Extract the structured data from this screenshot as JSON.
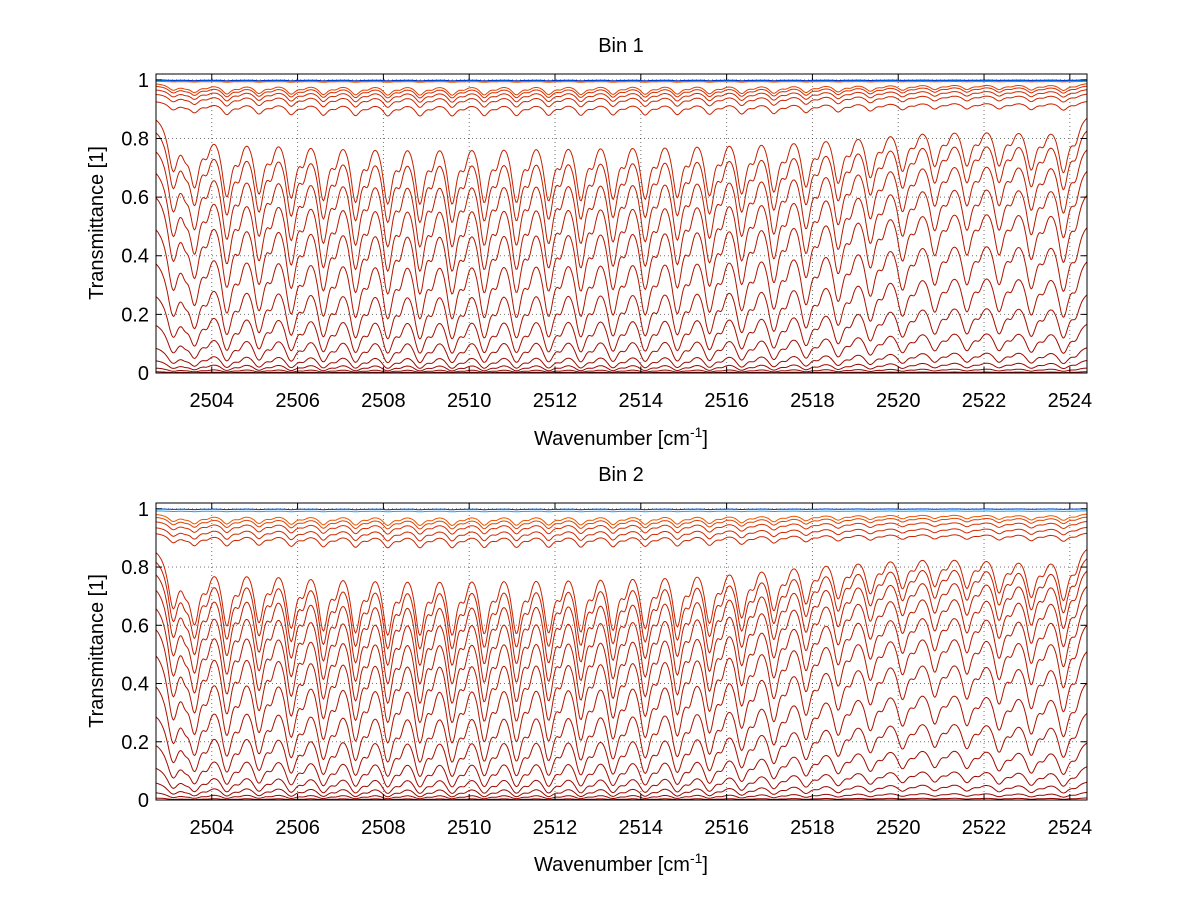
{
  "chart_data": [
    {
      "type": "line",
      "title": "Bin 1",
      "xlabel": "Wavenumber [cm",
      "xlabel_sup": "-1",
      "xlabel_end": "]",
      "ylabel": "Transmittance [1]",
      "xlim": [
        2502.7,
        2524.4
      ],
      "ylim": [
        0,
        1.02
      ],
      "xticks": [
        2504,
        2506,
        2508,
        2510,
        2512,
        2514,
        2516,
        2518,
        2520,
        2522,
        2524
      ],
      "yticks": [
        0,
        0.2,
        0.4,
        0.6,
        0.8,
        1
      ],
      "ytick_labels": [
        "0",
        "0.2",
        "0.4",
        "0.6",
        "0.8",
        "1"
      ],
      "grid": true,
      "line_centers": [
        2503.1,
        2503.6,
        2504.35,
        2505.1,
        2505.85,
        2506.6,
        2507.35,
        2508.1,
        2508.85,
        2509.6,
        2510.35,
        2511.1,
        2511.85,
        2512.6,
        2513.35,
        2514.1,
        2514.85,
        2515.6,
        2516.35,
        2517.1,
        2517.85,
        2518.6,
        2519.35,
        2520.1,
        2520.85,
        2521.6,
        2522.35,
        2523.1,
        2523.85
      ],
      "line_depths": [
        0.55,
        0.7,
        0.85,
        0.8,
        0.85,
        0.88,
        0.9,
        0.92,
        0.92,
        0.92,
        0.9,
        0.9,
        0.88,
        0.88,
        0.86,
        0.86,
        0.84,
        0.82,
        0.8,
        0.78,
        0.72,
        0.68,
        0.62,
        0.55,
        0.5,
        0.5,
        0.5,
        0.55,
        0.6
      ],
      "series_levels": [
        0.0,
        0.005,
        0.02,
        0.05,
        0.1,
        0.19,
        0.3,
        0.42,
        0.54,
        0.65,
        0.73,
        0.8,
        0.86,
        0.9,
        0.93,
        0.955,
        0.97,
        0.982,
        0.99,
        0.995,
        0.998,
        1.0
      ],
      "colors": {
        "dark": "#8b0000",
        "mid": "#d42a00",
        "light": "#ff7f00",
        "blue": "#0033cc",
        "cyan": "#00aaff"
      }
    },
    {
      "type": "line",
      "title": "Bin 2",
      "xlabel": "Wavenumber [cm",
      "xlabel_sup": "-1",
      "xlabel_end": "]",
      "ylabel": "Transmittance [1]",
      "xlim": [
        2502.7,
        2524.4
      ],
      "ylim": [
        0,
        1.02
      ],
      "xticks": [
        2504,
        2506,
        2508,
        2510,
        2512,
        2514,
        2516,
        2518,
        2520,
        2522,
        2524
      ],
      "yticks": [
        0,
        0.2,
        0.4,
        0.6,
        0.8,
        1
      ],
      "ytick_labels": [
        "0",
        "0.2",
        "0.4",
        "0.6",
        "0.8",
        "1"
      ],
      "grid": true,
      "line_centers": [
        2503.1,
        2503.6,
        2504.35,
        2505.1,
        2505.85,
        2506.6,
        2507.35,
        2508.1,
        2508.85,
        2509.6,
        2510.35,
        2511.1,
        2511.85,
        2512.6,
        2513.35,
        2514.1,
        2514.85,
        2515.6,
        2516.35,
        2517.1,
        2517.85,
        2518.6,
        2519.35,
        2520.1,
        2520.85,
        2521.6,
        2522.35,
        2523.1,
        2523.85
      ],
      "line_depths": [
        0.6,
        0.75,
        0.8,
        0.75,
        0.82,
        0.85,
        0.87,
        0.9,
        0.9,
        0.9,
        0.88,
        0.88,
        0.87,
        0.86,
        0.84,
        0.82,
        0.8,
        0.76,
        0.7,
        0.62,
        0.55,
        0.5,
        0.45,
        0.4,
        0.38,
        0.4,
        0.45,
        0.5,
        0.55
      ],
      "series_levels": [
        0.0,
        0.008,
        0.03,
        0.07,
        0.13,
        0.22,
        0.33,
        0.44,
        0.55,
        0.64,
        0.71,
        0.77,
        0.82,
        0.86,
        0.89,
        0.92,
        0.94,
        0.96,
        0.975,
        0.985,
        0.993,
        1.0
      ],
      "colors": {
        "dark": "#8b0000",
        "mid": "#d42a00",
        "light": "#ff7f00",
        "blue": "#0033cc",
        "cyan": "#00aaff"
      }
    }
  ]
}
